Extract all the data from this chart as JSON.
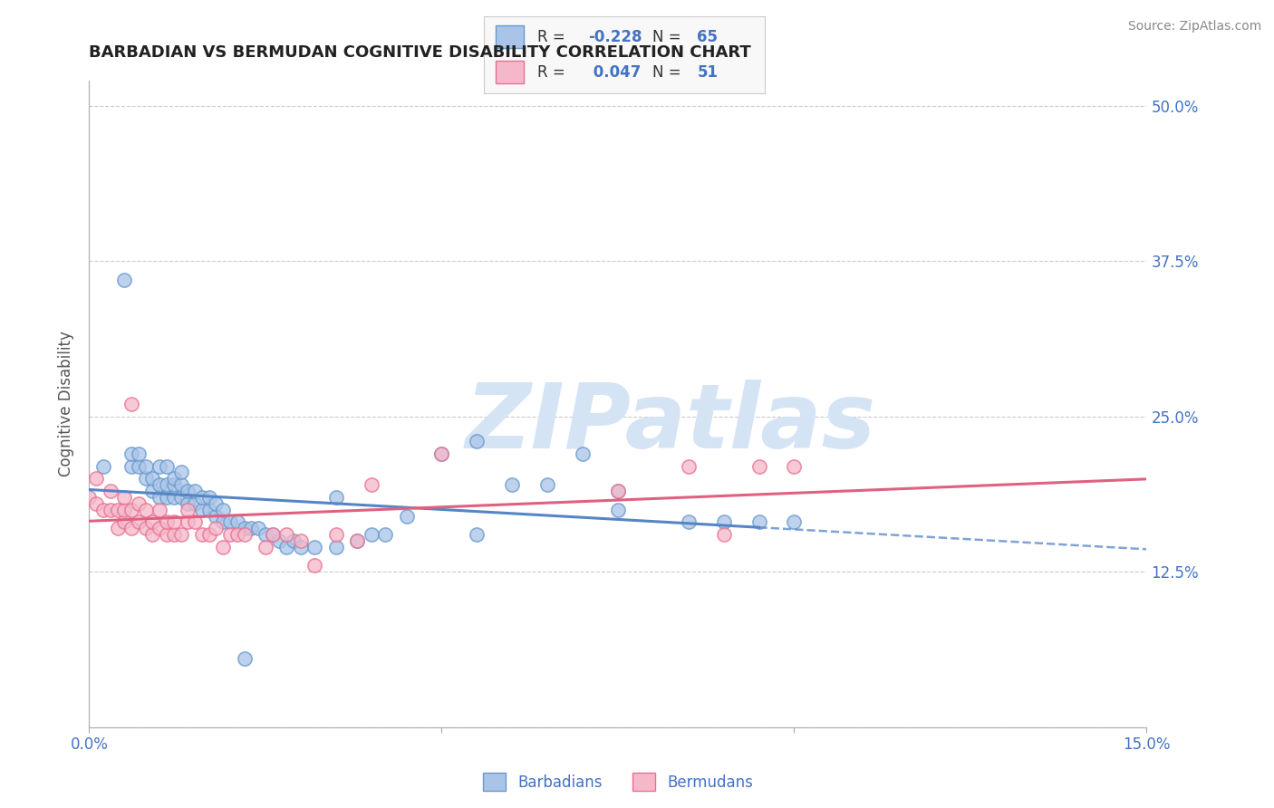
{
  "title": "BARBADIAN VS BERMUDAN COGNITIVE DISABILITY CORRELATION CHART",
  "source_text": "Source: ZipAtlas.com",
  "ylabel": "Cognitive Disability",
  "xlim": [
    0.0,
    0.15
  ],
  "ylim": [
    0.0,
    0.52
  ],
  "xticks": [
    0.0,
    0.05,
    0.1,
    0.15
  ],
  "xtick_labels": [
    "0.0%",
    "",
    "",
    "15.0%"
  ],
  "yticks": [
    0.0,
    0.125,
    0.25,
    0.375,
    0.5
  ],
  "ytick_labels_right": [
    "",
    "12.5%",
    "25.0%",
    "37.5%",
    "50.0%"
  ],
  "barbadian_color": "#aac4e8",
  "bermudan_color": "#f5b8ca",
  "barbadian_edge": "#6699cc",
  "bermudan_edge": "#e87090",
  "barbadian_line_color": "#5585c5",
  "bermudan_line_color": "#e06080",
  "R_barbadian": -0.228,
  "N_barbadian": 65,
  "R_bermudan": 0.047,
  "N_bermudan": 51,
  "watermark": "ZIPatlas",
  "watermark_color": "#d5e4f5",
  "background_color": "#ffffff",
  "grid_color": "#cccccc",
  "title_color": "#222222",
  "axis_label_color": "#555555",
  "tick_color": "#4472c4",
  "legend_R_color": "#4472c4",
  "barbadian_scatter_x": [
    0.002,
    0.005,
    0.006,
    0.006,
    0.007,
    0.007,
    0.008,
    0.008,
    0.009,
    0.009,
    0.01,
    0.01,
    0.01,
    0.011,
    0.011,
    0.011,
    0.012,
    0.012,
    0.012,
    0.013,
    0.013,
    0.013,
    0.014,
    0.014,
    0.015,
    0.015,
    0.016,
    0.016,
    0.017,
    0.017,
    0.018,
    0.018,
    0.019,
    0.019,
    0.02,
    0.021,
    0.022,
    0.023,
    0.024,
    0.025,
    0.026,
    0.027,
    0.028,
    0.029,
    0.03,
    0.032,
    0.035,
    0.038,
    0.04,
    0.042,
    0.045,
    0.05,
    0.055,
    0.06,
    0.065,
    0.07,
    0.075,
    0.085,
    0.09,
    0.095,
    0.1,
    0.035,
    0.022,
    0.055,
    0.075
  ],
  "barbadian_scatter_y": [
    0.21,
    0.36,
    0.21,
    0.22,
    0.21,
    0.22,
    0.2,
    0.21,
    0.19,
    0.2,
    0.185,
    0.195,
    0.21,
    0.185,
    0.195,
    0.21,
    0.185,
    0.195,
    0.2,
    0.185,
    0.195,
    0.205,
    0.18,
    0.19,
    0.18,
    0.19,
    0.175,
    0.185,
    0.175,
    0.185,
    0.17,
    0.18,
    0.165,
    0.175,
    0.165,
    0.165,
    0.16,
    0.16,
    0.16,
    0.155,
    0.155,
    0.15,
    0.145,
    0.15,
    0.145,
    0.145,
    0.145,
    0.15,
    0.155,
    0.155,
    0.17,
    0.22,
    0.23,
    0.195,
    0.195,
    0.22,
    0.19,
    0.165,
    0.165,
    0.165,
    0.165,
    0.185,
    0.055,
    0.155,
    0.175
  ],
  "bermudan_scatter_x": [
    0.0,
    0.001,
    0.001,
    0.002,
    0.003,
    0.003,
    0.004,
    0.004,
    0.005,
    0.005,
    0.005,
    0.006,
    0.006,
    0.006,
    0.007,
    0.007,
    0.008,
    0.008,
    0.009,
    0.009,
    0.01,
    0.01,
    0.011,
    0.011,
    0.012,
    0.012,
    0.013,
    0.014,
    0.014,
    0.015,
    0.016,
    0.017,
    0.018,
    0.019,
    0.02,
    0.021,
    0.022,
    0.025,
    0.026,
    0.028,
    0.03,
    0.032,
    0.035,
    0.038,
    0.04,
    0.05,
    0.075,
    0.09,
    0.095,
    0.1,
    0.085
  ],
  "bermudan_scatter_y": [
    0.185,
    0.18,
    0.2,
    0.175,
    0.175,
    0.19,
    0.16,
    0.175,
    0.165,
    0.175,
    0.185,
    0.16,
    0.175,
    0.26,
    0.165,
    0.18,
    0.16,
    0.175,
    0.155,
    0.165,
    0.16,
    0.175,
    0.155,
    0.165,
    0.155,
    0.165,
    0.155,
    0.165,
    0.175,
    0.165,
    0.155,
    0.155,
    0.16,
    0.145,
    0.155,
    0.155,
    0.155,
    0.145,
    0.155,
    0.155,
    0.15,
    0.13,
    0.155,
    0.15,
    0.195,
    0.22,
    0.19,
    0.155,
    0.21,
    0.21,
    0.21
  ]
}
